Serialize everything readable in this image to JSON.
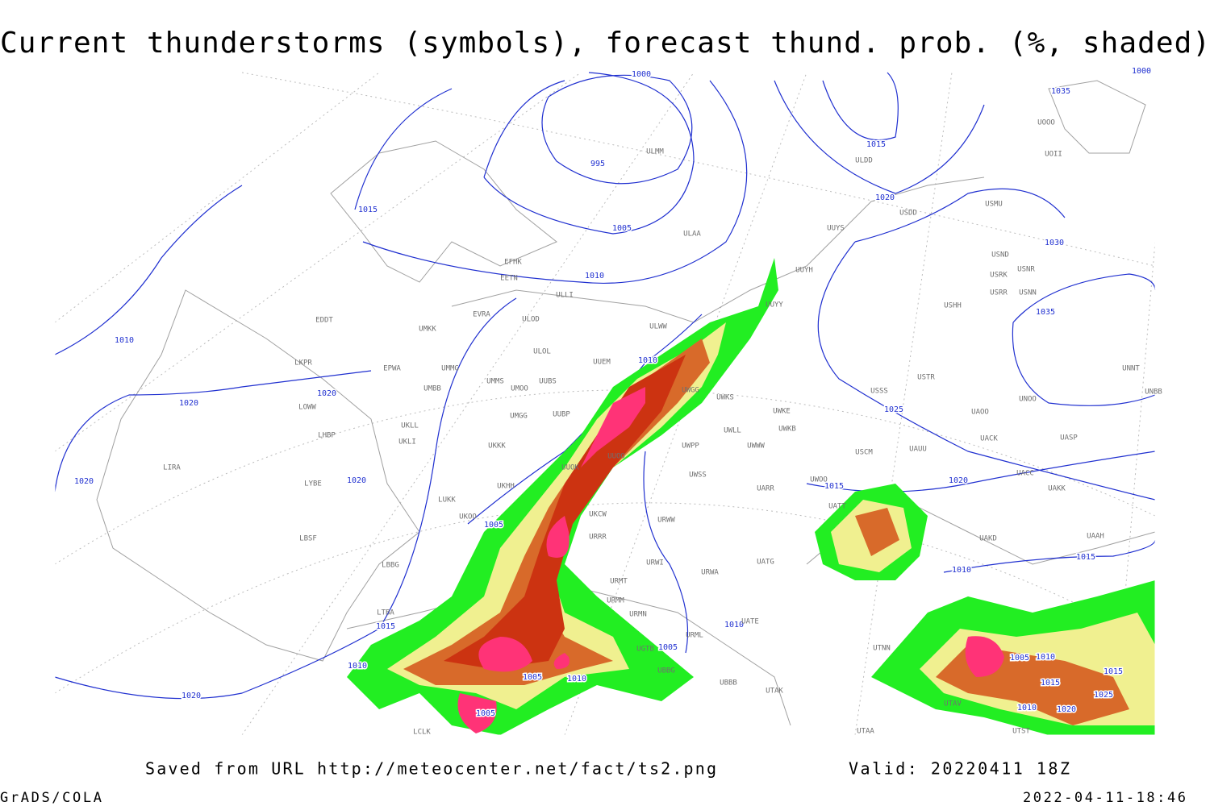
{
  "title": "Current thunderstorms (symbols), forecast thund. prob. (%, shaded)",
  "footer": {
    "source": "Saved from URL http://meteocenter.net/fact/ts2.png",
    "valid": "Valid: 20220411 18Z",
    "credit": "GrADS/COLA",
    "timestamp": "2022-04-11-18:46"
  },
  "isobar_labels": [
    "1000",
    "995",
    "1015",
    "1005",
    "1010",
    "1015",
    "1020",
    "1035",
    "1030",
    "1035",
    "1010",
    "1020",
    "1020",
    "1020",
    "1020",
    "1010",
    "1025",
    "1020",
    "1015",
    "1005",
    "1010",
    "1015",
    "1015",
    "1010",
    "1005",
    "1005",
    "1010",
    "1010",
    "1005",
    "1020",
    "1005",
    "1010",
    "1015",
    "1015",
    "1025",
    "1010",
    "1020",
    "1000"
  ],
  "stations": [
    "EFHK",
    "EETN",
    "ULLI",
    "ULAA",
    "ULMM",
    "ULDD",
    "USDD",
    "USMU",
    "UUYS",
    "UUYH",
    "UUYY",
    "ULWW",
    "ULOL",
    "EVRA",
    "ULOD",
    "UMKK",
    "EDDT",
    "EPWA",
    "UMMG",
    "UMMS",
    "UMOO",
    "UUBS",
    "UMBB",
    "LKPR",
    "LOWW",
    "LHBP",
    "UKLL",
    "UKLI",
    "UMGG",
    "UUBP",
    "UUEM",
    "UWGG",
    "UWKS",
    "UWKE",
    "UWKB",
    "UWLL",
    "UWWW",
    "UWPP",
    "UUOO",
    "UUOK",
    "UKKK",
    "UKHH",
    "LIRA",
    "LYBE",
    "LUKK",
    "UKOO",
    "UKCW",
    "UWSS",
    "UARR",
    "USCM",
    "UAUU",
    "USSS",
    "USTR",
    "UACK",
    "UASP",
    "UAOO",
    "UNOO",
    "UNNT",
    "UNBB",
    "USHH",
    "USRR",
    "USNN",
    "USRK",
    "USND",
    "USNR",
    "UOOO",
    "UOII",
    "UACC",
    "UAKK",
    "UAKD",
    "UAAH",
    "UATT",
    "URRR",
    "URWW",
    "URWI",
    "UATG",
    "URWA",
    "URMT",
    "URMM",
    "URMN",
    "URML",
    "UGTB",
    "UBBB",
    "UTAK",
    "UTNN",
    "UTAV",
    "UTAA",
    "UTST",
    "LBSF",
    "LBBG",
    "LTBA",
    "LCLK",
    "UWOO",
    "UATE",
    "UBBG"
  ]
}
